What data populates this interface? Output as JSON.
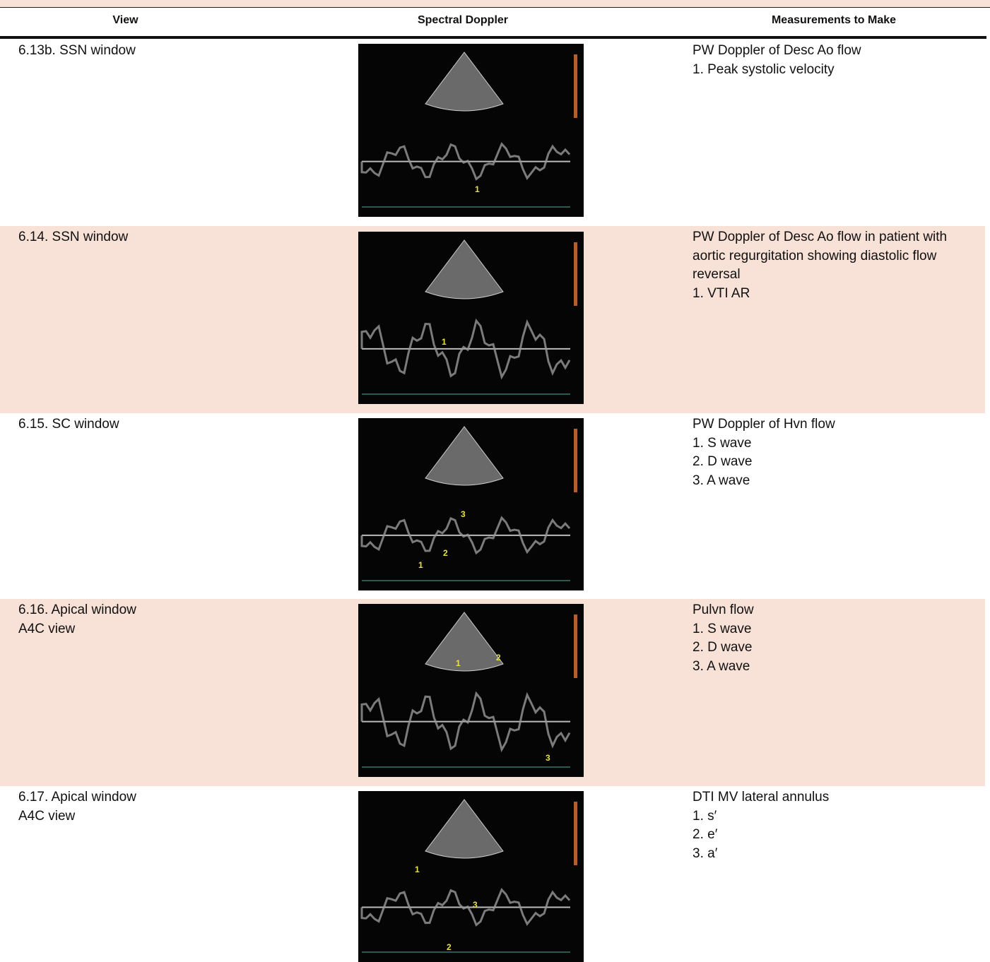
{
  "header": {
    "columns": [
      "View",
      "Spectral Doppler",
      "Measurements to Make"
    ]
  },
  "table": {
    "rows": [
      {
        "view": [
          "6.13b. SSN window"
        ],
        "measurements": [
          "PW Doppler of Desc Ao flow",
          "1. Peak systolic velocity"
        ],
        "image_labels": [
          "1"
        ]
      },
      {
        "view": [
          "6.14. SSN window"
        ],
        "measurements": [
          "PW Doppler of Desc Ao flow in patient with",
          "aortic regurgitation showing diastolic flow",
          "reversal",
          "1. VTI AR"
        ],
        "image_labels": [
          "1"
        ]
      },
      {
        "view": [
          "6.15. SC window"
        ],
        "measurements": [
          "PW Doppler of Hvn flow",
          "1. S wave",
          "2. D wave",
          "3. A wave"
        ],
        "image_labels": [
          "1",
          "2",
          "3"
        ]
      },
      {
        "view": [
          "6.16. Apical window",
          "A4C view"
        ],
        "measurements": [
          "Pulvn flow",
          "1. S wave",
          "2. D wave",
          "3. A wave"
        ],
        "image_labels": [
          "1",
          "2",
          "3"
        ]
      },
      {
        "view": [
          "6.17. Apical window",
          "A4C view"
        ],
        "measurements": [
          "DTI MV lateral annulus",
          "1. s′",
          "2. e′",
          "3. a′"
        ],
        "image_labels": [
          "1",
          "2",
          "3"
        ]
      }
    ]
  }
}
